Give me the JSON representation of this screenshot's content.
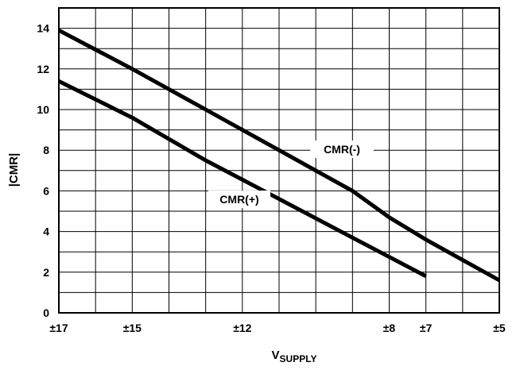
{
  "chart_data": {
    "type": "line",
    "title": "",
    "xlabel": {
      "main": "V",
      "sub": "SUPPLY"
    },
    "ylabel": "|CMR|",
    "x_ticks": [
      "±17",
      "±15",
      "±12",
      "±8",
      "±7",
      "±5"
    ],
    "y_ticks": [
      "0",
      "2",
      "4",
      "6",
      "8",
      "10",
      "12",
      "14"
    ],
    "ylim": [
      0,
      15
    ],
    "grid": true,
    "series": [
      {
        "name": "CMR(-)",
        "points": [
          {
            "x": 17,
            "y": 13.9
          },
          {
            "x": 15,
            "y": 12.0
          },
          {
            "x": 13,
            "y": 10.0
          },
          {
            "x": 11,
            "y": 8.0
          },
          {
            "x": 9,
            "y": 6.0
          },
          {
            "x": 8,
            "y": 4.7
          },
          {
            "x": 7,
            "y": 3.6
          },
          {
            "x": 6,
            "y": 2.6
          },
          {
            "x": 5,
            "y": 1.6
          }
        ]
      },
      {
        "name": "CMR(+)",
        "points": [
          {
            "x": 17,
            "y": 11.4
          },
          {
            "x": 15,
            "y": 9.6
          },
          {
            "x": 13,
            "y": 7.5
          },
          {
            "x": 11,
            "y": 5.6
          },
          {
            "x": 9,
            "y": 3.7
          },
          {
            "x": 7,
            "y": 1.8
          }
        ]
      }
    ]
  }
}
